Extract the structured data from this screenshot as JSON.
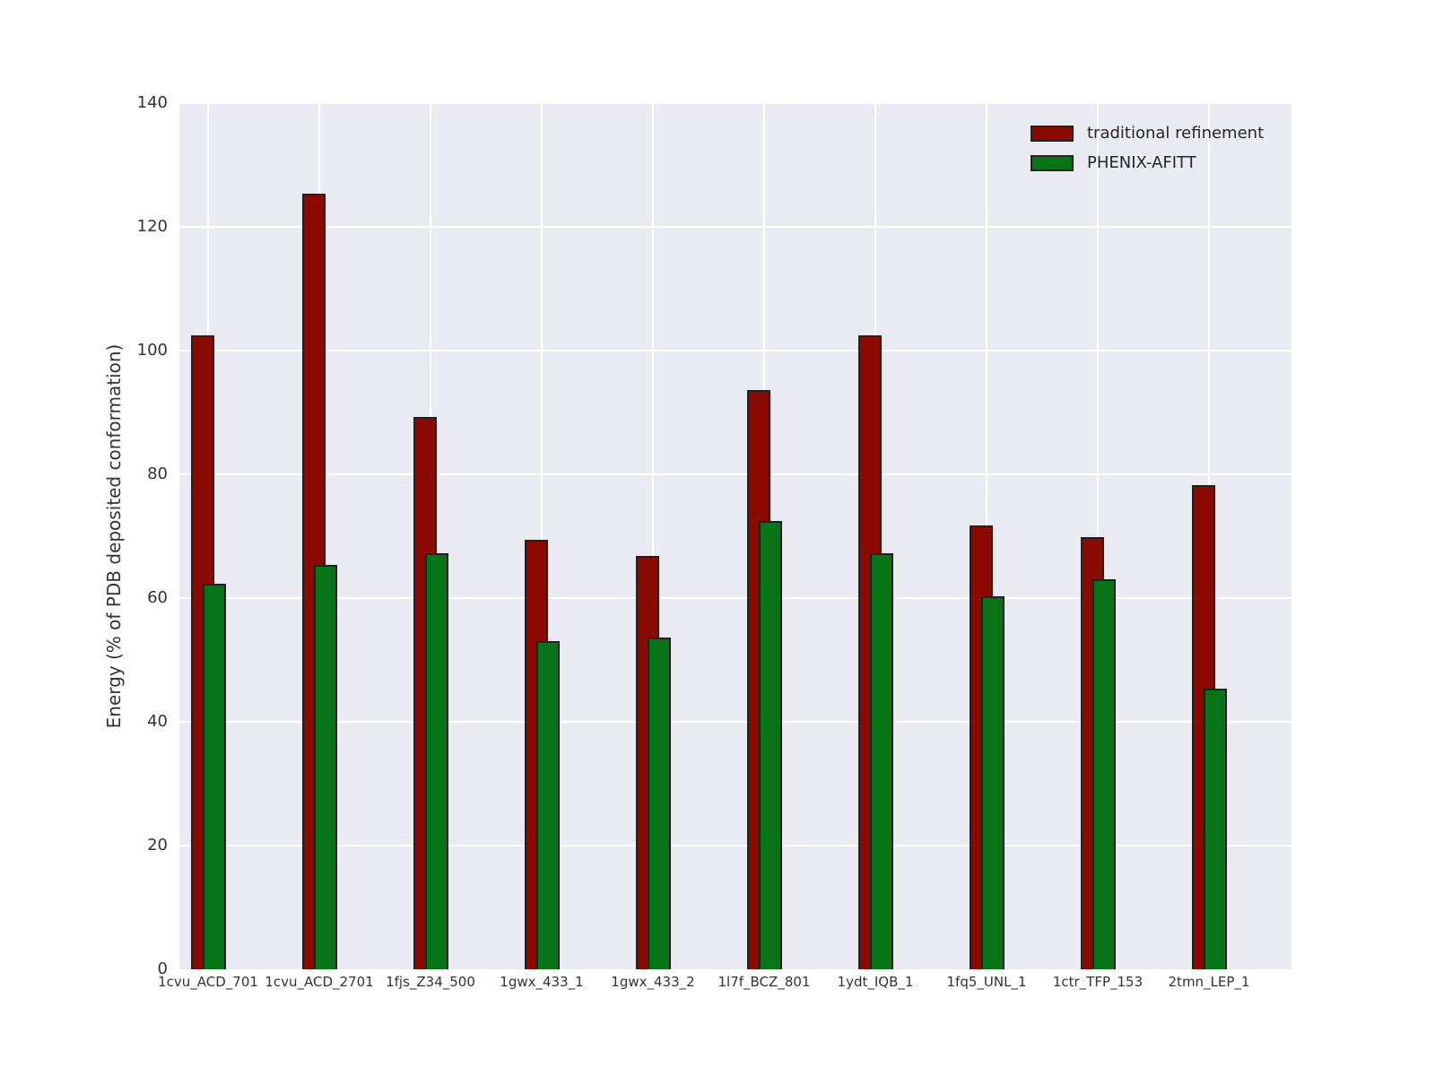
{
  "chart_data": {
    "type": "bar",
    "title": "",
    "xlabel": "",
    "ylabel": "Energy (% of PDB deposited conformation)",
    "ylim": [
      0,
      140
    ],
    "yticks": [
      0,
      20,
      40,
      60,
      80,
      100,
      120,
      140
    ],
    "grid": true,
    "grid_color": "#ffffff",
    "plot_background": "#eaeaf2",
    "figure_background": "#ffffff",
    "legend_position": "upper right",
    "bar_layout": "overlapping",
    "categories": [
      "1cvu_ACD_701",
      "1cvu_ACD_2701",
      "1fjs_Z34_500",
      "1gwx_433_1",
      "1gwx_433_2",
      "1l7f_BCZ_801",
      "1ydt_IQB_1",
      "1fq5_UNL_1",
      "1ctr_TFP_153",
      "2tmn_LEP_1"
    ],
    "series": [
      {
        "name": "traditional refinement",
        "color": "#8b0a02",
        "values": [
          102.5,
          125.3,
          89.3,
          69.4,
          66.8,
          93.6,
          102.5,
          71.7,
          69.9,
          78.3
        ]
      },
      {
        "name": "PHENIX-AFITT",
        "color": "#077418",
        "values": [
          62.3,
          65.4,
          67.2,
          53.0,
          53.6,
          72.5,
          67.3,
          60.3,
          63.0,
          45.3
        ]
      }
    ]
  },
  "colors": {
    "bar_edge": "#24201f",
    "tick_text": "#333333",
    "legend_text": "#262626"
  }
}
